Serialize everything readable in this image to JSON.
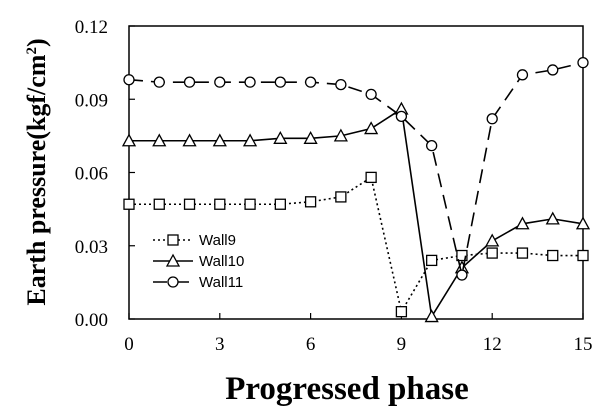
{
  "chart_data": {
    "type": "line",
    "xlabel": "Progressed phase",
    "ylabel_main": "Earth pressure(kgf/cm",
    "ylabel_sup": "2",
    "ylabel_close": ")",
    "xlim": [
      0,
      15
    ],
    "ylim": [
      0,
      0.12
    ],
    "xticks": [
      0,
      3,
      6,
      9,
      12,
      15
    ],
    "xtick_labels": [
      "0",
      "3",
      "6",
      "9",
      "12",
      "15"
    ],
    "yticks": [
      0,
      0.03,
      0.06,
      0.09,
      0.12
    ],
    "ytick_labels": [
      "0.00",
      "0.03",
      "0.06",
      "0.09",
      "0.12"
    ],
    "grid": false,
    "legend_position": "lower-left",
    "x": [
      0,
      1,
      2,
      3,
      4,
      5,
      6,
      7,
      8,
      9,
      10,
      11,
      12,
      13,
      14,
      15
    ],
    "series": [
      {
        "name": "Wall9",
        "marker": "square",
        "line_style": "dotted",
        "values": [
          0.047,
          0.047,
          0.047,
          0.047,
          0.047,
          0.047,
          0.048,
          0.05,
          0.058,
          0.003,
          0.024,
          0.026,
          0.027,
          0.027,
          0.026,
          0.026
        ]
      },
      {
        "name": "Wall10",
        "marker": "triangle",
        "line_style": "solid",
        "values": [
          0.073,
          0.073,
          0.073,
          0.073,
          0.073,
          0.074,
          0.074,
          0.075,
          0.078,
          0.086,
          0.001,
          0.021,
          0.032,
          0.039,
          0.041,
          0.039
        ]
      },
      {
        "name": "Wall11",
        "marker": "circle",
        "line_style": "dashed",
        "values": [
          0.098,
          0.097,
          0.097,
          0.097,
          0.097,
          0.097,
          0.097,
          0.096,
          0.092,
          0.083,
          0.071,
          0.018,
          0.082,
          0.1,
          0.102,
          0.105
        ]
      }
    ]
  }
}
